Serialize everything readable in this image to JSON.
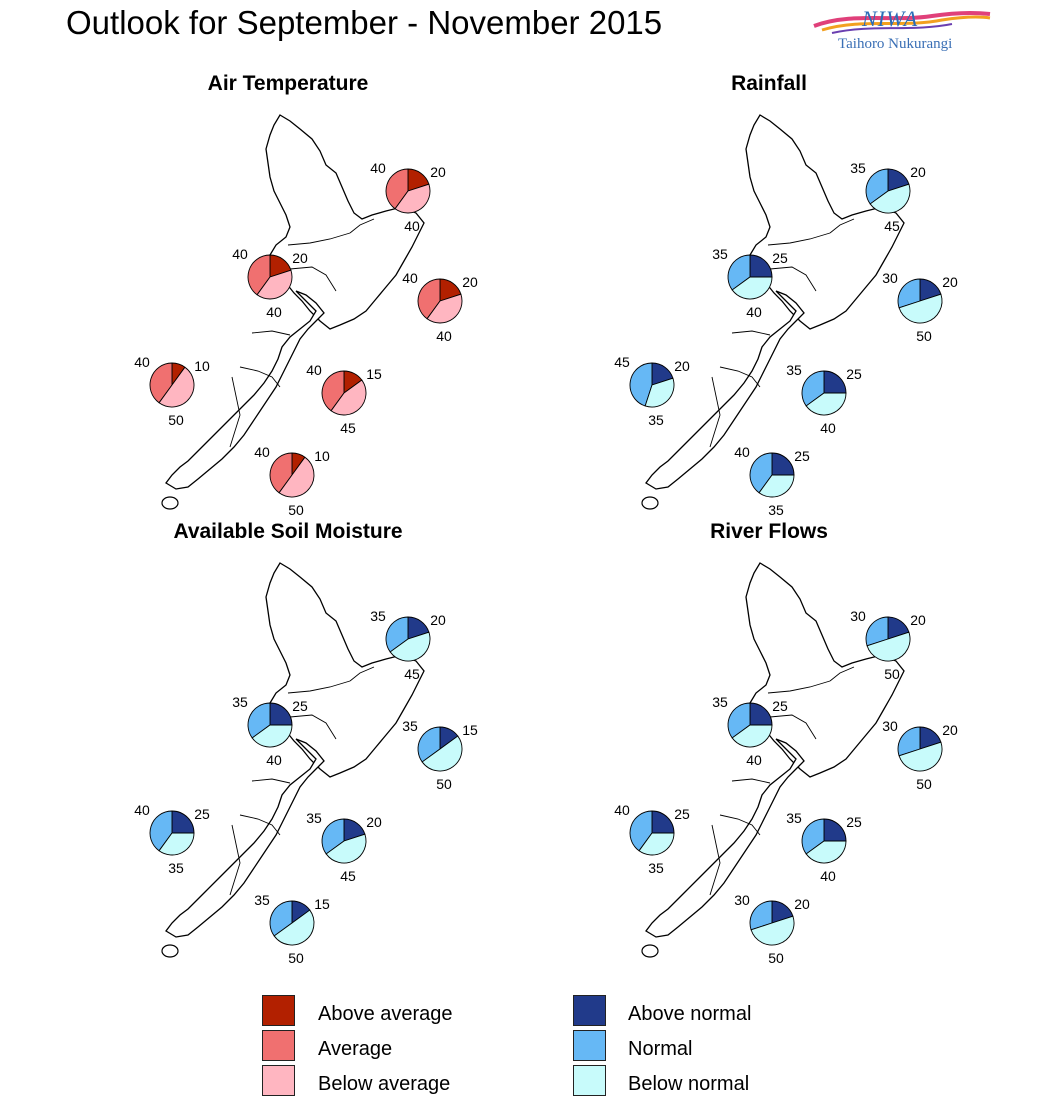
{
  "title": "Outlook for September - November 2015",
  "logo": {
    "word": "NIWA",
    "subtitle": "Taihoro Nukurangi"
  },
  "colors": {
    "temp_above": "#b22000",
    "temp_average": "#f07070",
    "temp_below": "#ffb6c1",
    "flow_above": "#213a8a",
    "flow_normal": "#66b8f5",
    "flow_below": "#c8fbfb"
  },
  "chart_data": [
    {
      "type": "pie",
      "title": "Air Temperature",
      "scheme": "temp",
      "regions": [
        {
          "name": "northland",
          "above": 20,
          "normal": 40,
          "below": 40
        },
        {
          "name": "west-north-island",
          "above": 20,
          "normal": 40,
          "below": 40
        },
        {
          "name": "east-north-island",
          "above": 20,
          "normal": 40,
          "below": 40
        },
        {
          "name": "north-south-island",
          "above": 15,
          "normal": 40,
          "below": 45
        },
        {
          "name": "west-south-island",
          "above": 10,
          "normal": 40,
          "below": 50
        },
        {
          "name": "east-south-island",
          "above": 10,
          "normal": 40,
          "below": 50
        }
      ]
    },
    {
      "type": "pie",
      "title": "Rainfall",
      "scheme": "flow",
      "regions": [
        {
          "name": "northland",
          "above": 20,
          "normal": 35,
          "below": 45
        },
        {
          "name": "west-north-island",
          "above": 25,
          "normal": 35,
          "below": 40
        },
        {
          "name": "east-north-island",
          "above": 20,
          "normal": 30,
          "below": 50
        },
        {
          "name": "north-south-island",
          "above": 25,
          "normal": 35,
          "below": 40
        },
        {
          "name": "west-south-island",
          "above": 20,
          "normal": 45,
          "below": 35
        },
        {
          "name": "east-south-island",
          "above": 25,
          "normal": 40,
          "below": 35
        }
      ]
    },
    {
      "type": "pie",
      "title": "Available Soil Moisture",
      "scheme": "flow",
      "regions": [
        {
          "name": "northland",
          "above": 20,
          "normal": 35,
          "below": 45
        },
        {
          "name": "west-north-island",
          "above": 25,
          "normal": 35,
          "below": 40
        },
        {
          "name": "east-north-island",
          "above": 15,
          "normal": 35,
          "below": 50
        },
        {
          "name": "north-south-island",
          "above": 20,
          "normal": 35,
          "below": 45
        },
        {
          "name": "west-south-island",
          "above": 25,
          "normal": 40,
          "below": 35
        },
        {
          "name": "east-south-island",
          "above": 15,
          "normal": 35,
          "below": 50
        }
      ]
    },
    {
      "type": "pie",
      "title": "River Flows",
      "scheme": "flow",
      "regions": [
        {
          "name": "northland",
          "above": 20,
          "normal": 30,
          "below": 50
        },
        {
          "name": "west-north-island",
          "above": 25,
          "normal": 35,
          "below": 40
        },
        {
          "name": "east-north-island",
          "above": 20,
          "normal": 30,
          "below": 50
        },
        {
          "name": "north-south-island",
          "above": 25,
          "normal": 35,
          "below": 40
        },
        {
          "name": "west-south-island",
          "above": 25,
          "normal": 40,
          "below": 35
        },
        {
          "name": "east-south-island",
          "above": 20,
          "normal": 30,
          "below": 50
        }
      ]
    }
  ],
  "legend": {
    "temp": [
      "Above average",
      "Average",
      "Below average"
    ],
    "flow": [
      "Above normal",
      "Normal",
      "Below normal"
    ]
  }
}
